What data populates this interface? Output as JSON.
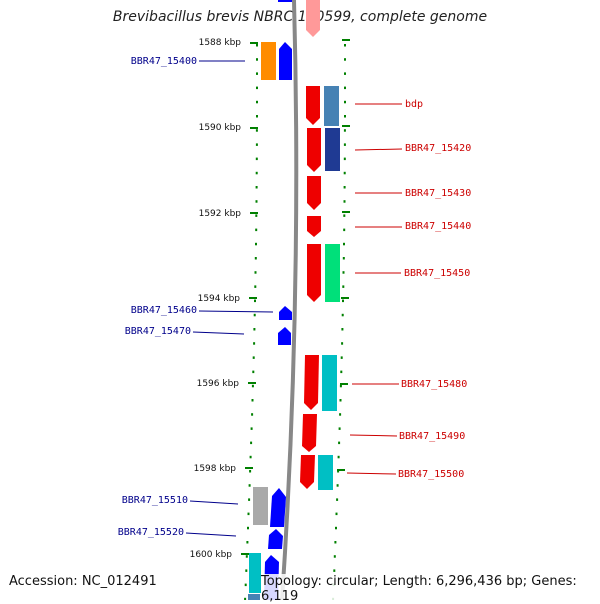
{
  "title": "Brevibacillus brevis NBRC 100599, complete genome",
  "accession": "Accession: NC_012491",
  "topology": "Topology: circular; Length: 6,296,436 bp; Genes: 6,119",
  "colors": {
    "blue_label": "#00008b",
    "red_label": "#cc0000",
    "tick": "#008000",
    "backbone": "#888888"
  },
  "scale_ticks": [
    "1588 kbp",
    "1590 kbp",
    "1592 kbp",
    "1594 kbp",
    "1596 kbp",
    "1598 kbp",
    "1600 kbp"
  ],
  "genes_left": [
    "BBR47_15400",
    "BBR47_15460",
    "BBR47_15470",
    "BBR47_15510",
    "BBR47_15520"
  ],
  "genes_right": [
    "bdp",
    "BBR47_15420",
    "BBR47_15430",
    "BBR47_15440",
    "BBR47_15450",
    "BBR47_15480",
    "BBR47_15490",
    "BBR47_15500"
  ]
}
